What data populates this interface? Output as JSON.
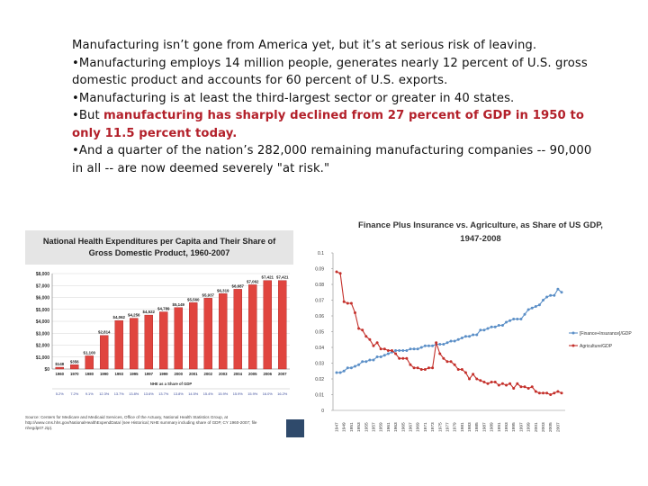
{
  "text": {
    "line_intro": "Manufacturing isn’t gone from America yet, but it’s at serious risk of leaving.",
    "bullet1": "•Manufacturing employs 14 million people, generates nearly 12 percent of U.S. gross domestic product and accounts for 60 percent of U.S. exports.",
    "bullet2": "•Manufacturing is at least the third-largest sector or greater in 40 states.",
    "bullet3_prefix": "•But ",
    "bullet3_highlight": "manufacturing has sharply declined from 27 percent of GDP in 1950 to only 11.5 percent today.",
    "bullet4": "•And a quarter of the nation’s 282,000 remaining manufacturing companies -- 90,000 in all -- are now deemed severely \"at risk.\""
  },
  "colors": {
    "bar_fill": "#e0453f",
    "bar_edge": "#a61e1e",
    "line_red": "#c4302b",
    "line_blue": "#5b8fc7",
    "title_bg": "#e5e5e5",
    "highlight": "#b3202a"
  },
  "source_note": "Source: Centers for Medicare and Medicaid Services, Office of the Actuary, National Health Statistics Group, at http://www.cms.hhs.gov/NationalHealthExpendData/ (see Historical; NHE summary including share of GDP, CY 1960-2007; file nhegdp07.zip).",
  "chart_data": [
    {
      "type": "bar",
      "title": "National Health Expenditures per Capita and Their Share of Gross Domestic Product, 1960-2007",
      "categories": [
        "1960",
        "1970",
        "1980",
        "1990",
        "1993",
        "1995",
        "1997",
        "1999",
        "2000",
        "2001",
        "2002",
        "2003",
        "2004",
        "2005",
        "2006",
        "2007"
      ],
      "values": [
        148,
        356,
        1100,
        2814,
        4062,
        4256,
        4522,
        4789,
        5149,
        5560,
        5937,
        6319,
        6687,
        7062,
        7421,
        7421
      ],
      "value_labels": [
        "$148",
        "$356",
        "$1,100",
        "$2,814",
        "$4,062",
        "$4,256",
        "$4,522",
        "$4,789",
        "$5,149",
        "$5,560",
        "$5,937",
        "$6,319",
        "$6,687",
        "$7,062",
        "$7,421",
        "$7,421"
      ],
      "gdp_share_caption": "NHE as a Share of GDP",
      "gdp_share": [
        "5.2%",
        "7.2%",
        "9.1%",
        "12.3%",
        "13.7%",
        "13.8%",
        "13.6%",
        "13.7%",
        "13.8%",
        "14.5%",
        "15.4%",
        "15.9%",
        "15.9%",
        "15.9%",
        "16.0%",
        "16.2%"
      ],
      "ylim": [
        0,
        8000
      ],
      "y_ticks": [
        "$0",
        "$1,000",
        "$2,000",
        "$3,000",
        "$4,000",
        "$5,000",
        "$6,000",
        "$7,000",
        "$8,000"
      ]
    },
    {
      "type": "line",
      "title": "Finance Plus Insurance vs. Agriculture, as Share of US GDP, 1947-2008",
      "x": [
        1947,
        1948,
        1949,
        1950,
        1951,
        1952,
        1953,
        1954,
        1955,
        1956,
        1957,
        1958,
        1959,
        1960,
        1961,
        1962,
        1963,
        1964,
        1965,
        1966,
        1967,
        1968,
        1969,
        1970,
        1971,
        1972,
        1973,
        1974,
        1975,
        1976,
        1977,
        1978,
        1979,
        1980,
        1981,
        1982,
        1983,
        1984,
        1985,
        1986,
        1987,
        1988,
        1989,
        1990,
        1991,
        1992,
        1993,
        1994,
        1995,
        1996,
        1997,
        1998,
        1999,
        2000,
        2001,
        2002,
        2003,
        2004,
        2005,
        2006,
        2007,
        2008
      ],
      "x_tick_labels": [
        "1947",
        "1949",
        "1951",
        "1953",
        "1955",
        "1957",
        "1959",
        "1961",
        "1963",
        "1965",
        "1967",
        "1969",
        "1971",
        "1973",
        "1975",
        "1977",
        "1979",
        "1981",
        "1983",
        "1985",
        "1987",
        "1989",
        "1991",
        "1993",
        "1995",
        "1997",
        "1999",
        "2001",
        "2003",
        "2005",
        "2007"
      ],
      "series": [
        {
          "name": "[Finance+Insurance]/GDP",
          "values": [
            0.024,
            0.024,
            0.025,
            0.027,
            0.027,
            0.028,
            0.029,
            0.031,
            0.031,
            0.032,
            0.032,
            0.034,
            0.034,
            0.035,
            0.036,
            0.037,
            0.038,
            0.038,
            0.038,
            0.038,
            0.039,
            0.039,
            0.039,
            0.04,
            0.041,
            0.041,
            0.041,
            0.042,
            0.042,
            0.042,
            0.043,
            0.044,
            0.044,
            0.045,
            0.046,
            0.047,
            0.047,
            0.048,
            0.048,
            0.051,
            0.051,
            0.052,
            0.053,
            0.053,
            0.054,
            0.054,
            0.056,
            0.057,
            0.058,
            0.058,
            0.058,
            0.061,
            0.064,
            0.065,
            0.066,
            0.067,
            0.07,
            0.072,
            0.073,
            0.073,
            0.077,
            0.075
          ]
        },
        {
          "name": "Agriculture/GDP",
          "values": [
            0.088,
            0.087,
            0.069,
            0.068,
            0.068,
            0.062,
            0.052,
            0.051,
            0.047,
            0.045,
            0.041,
            0.043,
            0.039,
            0.039,
            0.038,
            0.038,
            0.036,
            0.033,
            0.033,
            0.033,
            0.029,
            0.027,
            0.027,
            0.026,
            0.026,
            0.027,
            0.027,
            0.043,
            0.036,
            0.033,
            0.031,
            0.031,
            0.029,
            0.026,
            0.026,
            0.024,
            0.02,
            0.023,
            0.02,
            0.019,
            0.018,
            0.017,
            0.018,
            0.018,
            0.016,
            0.017,
            0.016,
            0.017,
            0.014,
            0.017,
            0.015,
            0.015,
            0.014,
            0.015,
            0.012,
            0.011,
            0.011,
            0.011,
            0.01,
            0.011,
            0.012,
            0.011
          ]
        }
      ],
      "ylim": [
        0,
        0.1
      ],
      "y_ticks": [
        "0",
        "0.01",
        "0.02",
        "0.03",
        "0.04",
        "0.05",
        "0.06",
        "0.07",
        "0.08",
        "0.09",
        "0.1"
      ],
      "legend_position": "right"
    }
  ]
}
